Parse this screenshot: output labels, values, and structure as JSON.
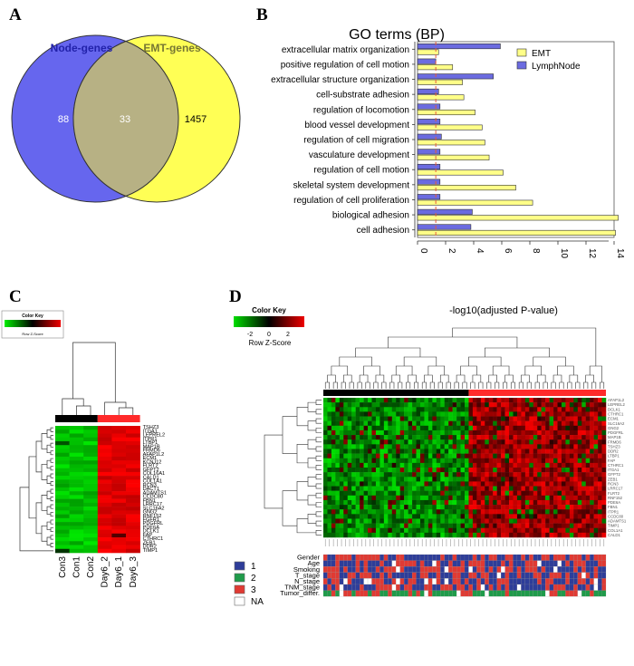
{
  "panels": {
    "a": "A",
    "b": "B",
    "c": "C",
    "d": "D"
  },
  "venn": {
    "left_label": "Node-genes",
    "right_label": "EMT-genes",
    "left_only": "88",
    "overlap": "33",
    "right_only": "1457",
    "colors": {
      "left": "#6666ee",
      "right": "#ffff55",
      "overlap": "#b7b184",
      "left_label": "#2222aa",
      "right_label": "#777733"
    }
  },
  "chart_data": {
    "type": "bar",
    "title": "GO terms (BP)",
    "xlabel": "-log10(adjusted P-value)",
    "xlim": [
      0,
      14
    ],
    "xticks": [
      "0",
      "2",
      "4",
      "6",
      "8",
      "10",
      "12",
      "14"
    ],
    "threshold": 1.3,
    "threshold_color": "#e55b3c",
    "legend_position": "top-right",
    "categories": [
      "extracellular matrix organization",
      "positive regulation of cell motion",
      "extracellular structure organization",
      "cell-substrate adhesion",
      "regulation of locomotion",
      "blood vessel development",
      "regulation of cell migration",
      "vasculature development",
      "regulation of cell motion",
      "skeletal system development",
      "regulation of cell proliferation",
      "biological adhesion",
      "cell adhesion"
    ],
    "series": [
      {
        "name": "EMT",
        "color": "#ffff88",
        "values": [
          1.5,
          2.5,
          3.2,
          3.3,
          4.1,
          4.6,
          4.8,
          5.1,
          6.1,
          7.0,
          8.2,
          14.3,
          14.1
        ]
      },
      {
        "name": "LymphNode",
        "color": "#6b6be0",
        "values": [
          5.9,
          1.3,
          5.4,
          1.5,
          1.6,
          1.6,
          1.7,
          1.6,
          1.6,
          1.6,
          1.6,
          3.9,
          3.8
        ]
      }
    ]
  },
  "heatmap_c": {
    "key_title": "Color Key",
    "key_axis": "Row Z-Score",
    "columns": [
      "Con3",
      "Con1",
      "Con2",
      "Day6_2",
      "Day6_1",
      "Day6_3"
    ],
    "genes": [
      "TSHZ3",
      "ITGA1",
      "LEPREL2",
      "ITPR1",
      "LTBP1",
      "MAP1B",
      "FRMD6",
      "AFAP1L2",
      "ECM1",
      "KCNJ12",
      "FLRT2",
      "GFPT2",
      "COL16A1",
      "CALD1",
      "COL1A1",
      "RCN3",
      "DACT1",
      "ADAMTS1",
      "CCDC80",
      "FBN1",
      "LRRC17",
      "SLC16A2",
      "GNG2",
      "RNF152",
      "FGFR1",
      "PDGFRL",
      "PDE6A",
      "DCLK1",
      "FAP",
      "CTHRC1",
      "ZEB1",
      "DDR2",
      "TIMP1"
    ]
  },
  "heatmap_d": {
    "key_title": "Color Key",
    "key_axis": "Row Z-Score",
    "key_ticks": [
      "-2",
      "0",
      "2"
    ],
    "genes": [
      "AFAP1L2",
      "LEPREL2",
      "DCLK1",
      "CTHRC1",
      "ECM1",
      "SLC16A2",
      "GNG2",
      "PDGFRL",
      "MAP1B",
      "FRMD6",
      "TSHZ3",
      "DDR2",
      "LTBP1",
      "FAP",
      "CTHRC1",
      "ITGA1",
      "GFPT2",
      "ZEB1",
      "RCN3",
      "LRRC17",
      "FLRT2",
      "RNF152",
      "PDE6A",
      "FBN1",
      "ITPR1",
      "CCDC80",
      "ADAMTS1",
      "TIMP1",
      "COL1A1",
      "CALD1"
    ],
    "annotation_rows": [
      "Gender",
      "Age",
      "Smoking",
      "T_stage",
      "N_stage",
      "TNM_stage",
      "Tumor_differ."
    ],
    "legend": [
      {
        "label": "1",
        "color": "#2e3d99"
      },
      {
        "label": "2",
        "color": "#1f9b4a"
      },
      {
        "label": "3",
        "color": "#e03a33"
      },
      {
        "label": "NA",
        "color": "#ffffff"
      }
    ],
    "group_colors": {
      "normal": "#000000",
      "tumor": "#ff2a2a"
    }
  }
}
